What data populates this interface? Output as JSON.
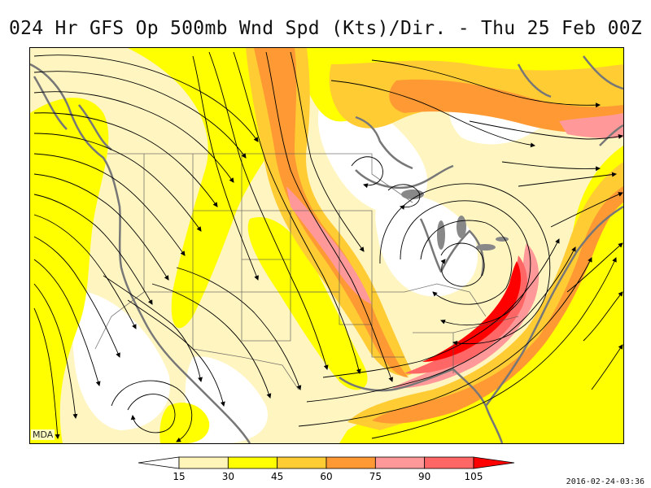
{
  "title": "024 Hr GFS Op 500mb Wnd Spd (Kts)/Dir. - Thu 25 Feb 00Z",
  "credit": "MDA",
  "timestamp": "2016-02-24-03:36",
  "legend": {
    "tick_labels": [
      "15",
      "30",
      "45",
      "60",
      "75",
      "90",
      "105"
    ],
    "bins": [
      {
        "color": "#ffffff"
      },
      {
        "color": "#fff5b8"
      },
      {
        "color": "#ffff00"
      },
      {
        "color": "#ffcc33"
      },
      {
        "color": "#ff9933"
      },
      {
        "color": "#ff9999"
      },
      {
        "color": "#ff6666"
      },
      {
        "color": "#ff0000"
      }
    ]
  },
  "colors": {
    "coast": "#777777",
    "borders": "#555555",
    "streamlines": "#000000"
  }
}
